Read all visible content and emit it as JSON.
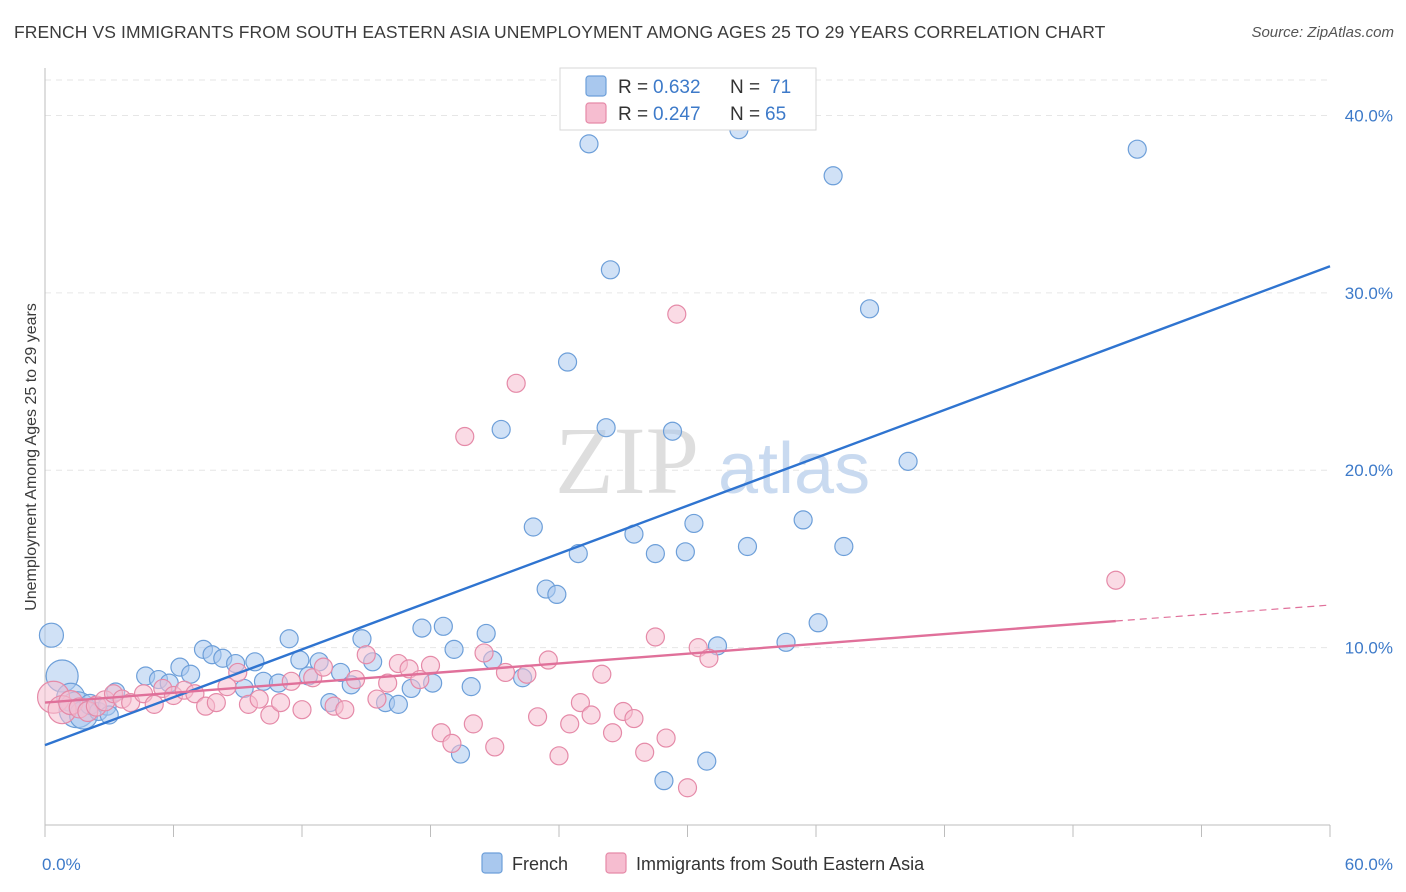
{
  "title": "FRENCH VS IMMIGRANTS FROM SOUTH EASTERN ASIA UNEMPLOYMENT AMONG AGES 25 TO 29 YEARS CORRELATION CHART",
  "source": "Source: ZipAtlas.com",
  "watermark": {
    "zip": "ZIP",
    "atlas": "atlas"
  },
  "legend_top": {
    "rows": [
      {
        "r_label": "R =",
        "r_value": "0.632",
        "n_label": "N =",
        "n_value": "71",
        "color": "#a9c8ee",
        "stroke": "#6d9fd9"
      },
      {
        "r_label": "R =",
        "r_value": "0.247",
        "n_label": "N =",
        "n_value": "65",
        "color": "#f6bdd0",
        "stroke": "#e58aa8"
      }
    ]
  },
  "legend_bottom": [
    {
      "label": "French",
      "color": "#a9c8ee",
      "stroke": "#6d9fd9"
    },
    {
      "label": "Immigrants from South Eastern Asia",
      "color": "#f6bdd0",
      "stroke": "#e58aa8"
    }
  ],
  "chart_data": {
    "type": "scatter",
    "title": "FRENCH VS IMMIGRANTS FROM SOUTH EASTERN ASIA UNEMPLOYMENT AMONG AGES 25 TO 29 YEARS CORRELATION CHART",
    "xlabel": "",
    "ylabel": "Unemployment Among Ages 25 to 29 years",
    "xlim": [
      0,
      60
    ],
    "ylim": [
      0,
      42
    ],
    "x_tick_labels": [
      {
        "value": 0,
        "label": "0.0%"
      },
      {
        "value": 60,
        "label": "60.0%"
      }
    ],
    "y_tick_labels": [
      {
        "value": 10,
        "label": "10.0%"
      },
      {
        "value": 20,
        "label": "20.0%"
      },
      {
        "value": 30,
        "label": "30.0%"
      },
      {
        "value": 40,
        "label": "40.0%"
      }
    ],
    "grid": true,
    "legend_position": "top-center",
    "series": [
      {
        "name": "French",
        "color": "#a9c8ee",
        "stroke": "#6d9fd9",
        "trend": {
          "x": [
            0,
            60
          ],
          "y": [
            4.5,
            31.5
          ],
          "color": "#2f74d0"
        },
        "points": [
          [
            0.3,
            10.7,
            12
          ],
          [
            0.8,
            8.4,
            16
          ],
          [
            1.2,
            7.2,
            14
          ],
          [
            1.5,
            6.5,
            18
          ],
          [
            1.8,
            6.2,
            14
          ],
          [
            2.1,
            6.8,
            10
          ],
          [
            2.5,
            6.4,
            9
          ],
          [
            2.9,
            6.7,
            9
          ],
          [
            3.3,
            7.5,
            9
          ],
          [
            4.7,
            8.4,
            9
          ],
          [
            5.3,
            8.2,
            9
          ],
          [
            5.8,
            8.0,
            9
          ],
          [
            6.3,
            8.9,
            9
          ],
          [
            6.8,
            8.5,
            9
          ],
          [
            7.4,
            9.9,
            9
          ],
          [
            7.8,
            9.6,
            9
          ],
          [
            8.3,
            9.4,
            9
          ],
          [
            8.9,
            9.1,
            9
          ],
          [
            9.3,
            7.7,
            9
          ],
          [
            9.8,
            9.2,
            9
          ],
          [
            10.2,
            8.1,
            9
          ],
          [
            10.9,
            8.0,
            9
          ],
          [
            11.4,
            10.5,
            9
          ],
          [
            11.9,
            9.3,
            9
          ],
          [
            12.3,
            8.4,
            9
          ],
          [
            12.8,
            9.2,
            9
          ],
          [
            13.3,
            6.9,
            9
          ],
          [
            13.8,
            8.6,
            9
          ],
          [
            14.3,
            7.9,
            9
          ],
          [
            14.8,
            10.5,
            9
          ],
          [
            15.3,
            9.2,
            9
          ],
          [
            15.9,
            6.9,
            9
          ],
          [
            16.5,
            6.8,
            9
          ],
          [
            17.1,
            7.7,
            9
          ],
          [
            17.6,
            11.1,
            9
          ],
          [
            18.1,
            8.0,
            9
          ],
          [
            18.6,
            11.2,
            9
          ],
          [
            19.1,
            9.9,
            9
          ],
          [
            19.9,
            7.8,
            9
          ],
          [
            20.6,
            10.8,
            9
          ],
          [
            20.9,
            9.3,
            9
          ],
          [
            19.4,
            4.0,
            9
          ],
          [
            22.3,
            8.3,
            9
          ],
          [
            21.3,
            22.3,
            9
          ],
          [
            22.8,
            16.8,
            9
          ],
          [
            23.4,
            13.3,
            9
          ],
          [
            23.9,
            13.0,
            9
          ],
          [
            24.4,
            26.1,
            9
          ],
          [
            24.9,
            15.3,
            9
          ],
          [
            25.4,
            38.4,
            9
          ],
          [
            26.2,
            22.4,
            9
          ],
          [
            26.4,
            31.3,
            9
          ],
          [
            27.5,
            16.4,
            9
          ],
          [
            28.5,
            15.3,
            9
          ],
          [
            28.9,
            2.5,
            9
          ],
          [
            29.3,
            22.2,
            9
          ],
          [
            29.9,
            15.4,
            9
          ],
          [
            30.3,
            17.0,
            9
          ],
          [
            30.9,
            3.6,
            9
          ],
          [
            31.4,
            10.1,
            9
          ],
          [
            32.4,
            39.2,
            9
          ],
          [
            32.8,
            15.7,
            9
          ],
          [
            34.6,
            10.3,
            9
          ],
          [
            35.4,
            17.2,
            9
          ],
          [
            36.1,
            11.4,
            9
          ],
          [
            36.8,
            36.6,
            9
          ],
          [
            37.3,
            15.7,
            9
          ],
          [
            38.5,
            29.1,
            9
          ],
          [
            40.3,
            20.5,
            9
          ],
          [
            51.0,
            38.1,
            9
          ],
          [
            3.0,
            6.2,
            9
          ]
        ]
      },
      {
        "name": "Immigrants from South Eastern Asia",
        "color": "#f6bdd0",
        "stroke": "#e58aa8",
        "trend": {
          "x": [
            0,
            50
          ],
          "y": [
            6.9,
            11.5
          ],
          "color": "#e0709a"
        },
        "trend_dashed": {
          "x": [
            50,
            60
          ],
          "y": [
            11.5,
            12.4
          ]
        },
        "points": [
          [
            0.4,
            7.2,
            16
          ],
          [
            0.8,
            6.5,
            14
          ],
          [
            1.2,
            6.9,
            12
          ],
          [
            1.6,
            6.6,
            10
          ],
          [
            2.0,
            6.4,
            10
          ],
          [
            2.4,
            6.7,
            10
          ],
          [
            2.8,
            7.0,
            10
          ],
          [
            3.2,
            7.4,
            9
          ],
          [
            3.6,
            7.1,
            9
          ],
          [
            4.0,
            6.9,
            9
          ],
          [
            4.6,
            7.4,
            9
          ],
          [
            5.1,
            6.8,
            9
          ],
          [
            5.5,
            7.7,
            9
          ],
          [
            6.0,
            7.3,
            9
          ],
          [
            6.5,
            7.6,
            9
          ],
          [
            7.0,
            7.4,
            9
          ],
          [
            7.5,
            6.7,
            9
          ],
          [
            8.0,
            6.9,
            9
          ],
          [
            8.5,
            7.8,
            9
          ],
          [
            9.0,
            8.6,
            9
          ],
          [
            9.5,
            6.8,
            9
          ],
          [
            10.0,
            7.1,
            9
          ],
          [
            10.5,
            6.2,
            9
          ],
          [
            11.0,
            6.9,
            9
          ],
          [
            11.5,
            8.1,
            9
          ],
          [
            12.0,
            6.5,
            9
          ],
          [
            12.5,
            8.3,
            9
          ],
          [
            13.0,
            8.9,
            9
          ],
          [
            13.5,
            6.7,
            9
          ],
          [
            14.0,
            6.5,
            9
          ],
          [
            14.5,
            8.2,
            9
          ],
          [
            15.0,
            9.6,
            9
          ],
          [
            15.5,
            7.1,
            9
          ],
          [
            16.0,
            8.0,
            9
          ],
          [
            16.5,
            9.1,
            9
          ],
          [
            17.0,
            8.8,
            9
          ],
          [
            17.5,
            8.2,
            9
          ],
          [
            18.0,
            9.0,
            9
          ],
          [
            18.5,
            5.2,
            9
          ],
          [
            19.0,
            4.6,
            9
          ],
          [
            19.6,
            21.9,
            9
          ],
          [
            20.0,
            5.7,
            9
          ],
          [
            20.5,
            9.7,
            9
          ],
          [
            21.0,
            4.4,
            9
          ],
          [
            21.5,
            8.6,
            9
          ],
          [
            22.0,
            24.9,
            9
          ],
          [
            22.5,
            8.5,
            9
          ],
          [
            23.0,
            6.1,
            9
          ],
          [
            23.5,
            9.3,
            9
          ],
          [
            24.0,
            3.9,
            9
          ],
          [
            24.5,
            5.7,
            9
          ],
          [
            25.0,
            6.9,
            9
          ],
          [
            25.5,
            6.2,
            9
          ],
          [
            26.0,
            8.5,
            9
          ],
          [
            26.5,
            5.2,
            9
          ],
          [
            27.0,
            6.4,
            9
          ],
          [
            27.5,
            6.0,
            9
          ],
          [
            28.0,
            4.1,
            9
          ],
          [
            28.5,
            10.6,
            9
          ],
          [
            29.0,
            4.9,
            9
          ],
          [
            29.5,
            28.8,
            9
          ],
          [
            30.0,
            2.1,
            9
          ],
          [
            30.5,
            10.0,
            9
          ],
          [
            31.0,
            9.4,
            9
          ],
          [
            50.0,
            13.8,
            9
          ]
        ]
      }
    ]
  }
}
